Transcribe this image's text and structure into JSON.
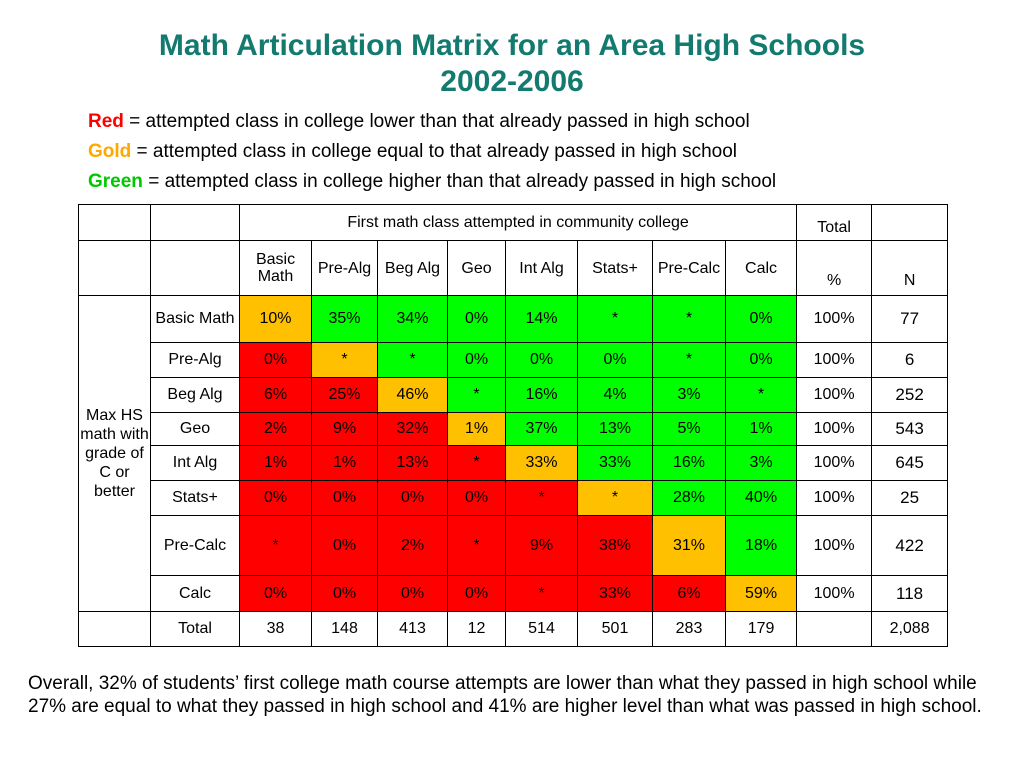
{
  "title_line1": "Math Articulation Matrix for an Area High Schools",
  "title_line2": "2002-2006",
  "legend": [
    {
      "keyword": "Red",
      "text": " = attempted class in college lower than that already passed in high school",
      "color": "#ff0000"
    },
    {
      "keyword": "Gold",
      "text": " = attempted class in college equal to that already passed in high school",
      "color": "#ffa800"
    },
    {
      "keyword": "Green",
      "text": " = attempted class in college higher than that already passed in high school",
      "color": "#00c800"
    }
  ],
  "colors": {
    "red": "#ff0000",
    "gold": "#ffc000",
    "green": "#00ff00",
    "title": "#127a6e"
  },
  "table": {
    "group_header": "First math class attempted in community college",
    "total_header": "Total",
    "pct_header": "%",
    "n_header": "N",
    "columns": [
      "Basic Math",
      "Pre-Alg",
      "Beg Alg",
      "Geo",
      "Int Alg",
      "Stats+",
      "Pre-Calc",
      "Calc"
    ],
    "side_label": "Max HS math with grade of C or better",
    "rows": [
      {
        "label": "Basic Math",
        "cells": [
          "10%",
          "35%",
          "34%",
          "0%",
          "14%",
          "*",
          "*",
          "0%"
        ],
        "colors": [
          "gold",
          "green",
          "green",
          "green",
          "green",
          "green",
          "green",
          "green"
        ],
        "pct": "100%",
        "n": "77"
      },
      {
        "label": "Pre-Alg",
        "cells": [
          "0%",
          "*",
          "*",
          "0%",
          "0%",
          "0%",
          "*",
          "0%"
        ],
        "colors": [
          "red",
          "gold",
          "green",
          "green",
          "green",
          "green",
          "green",
          "green"
        ],
        "pct": "100%",
        "n": "6"
      },
      {
        "label": "Beg Alg",
        "cells": [
          "6%",
          "25%",
          "46%",
          "*",
          "16%",
          "4%",
          "3%",
          "*"
        ],
        "colors": [
          "red",
          "red",
          "gold",
          "green",
          "green",
          "green",
          "green",
          "green"
        ],
        "pct": "100%",
        "n": "252"
      },
      {
        "label": "Geo",
        "cells": [
          "2%",
          "9%",
          "32%",
          "1%",
          "37%",
          "13%",
          "5%",
          "1%"
        ],
        "colors": [
          "red",
          "red",
          "red",
          "gold",
          "green",
          "green",
          "green",
          "green"
        ],
        "pct": "100%",
        "n": "543"
      },
      {
        "label": "Int Alg",
        "cells": [
          "1%",
          "1%",
          "13%",
          "*",
          "33%",
          "33%",
          "16%",
          "3%"
        ],
        "colors": [
          "red",
          "red",
          "red",
          "red",
          "gold",
          "green",
          "green",
          "green"
        ],
        "pct": "100%",
        "n": "645"
      },
      {
        "label": "Stats+",
        "cells": [
          "0%",
          "0%",
          "0%",
          "0%",
          "*",
          "*",
          "28%",
          "40%"
        ],
        "colors": [
          "red",
          "red",
          "red",
          "red",
          "red",
          "gold",
          "green",
          "green"
        ],
        "pct": "100%",
        "n": "25"
      },
      {
        "label": "Pre-Calc",
        "cells": [
          "*",
          "0%",
          "2%",
          "*",
          "9%",
          "38%",
          "31%",
          "18%"
        ],
        "colors": [
          "red",
          "red",
          "red",
          "red",
          "red",
          "red",
          "gold",
          "green"
        ],
        "pct": "100%",
        "n": "422"
      },
      {
        "label": "Calc",
        "cells": [
          "0%",
          "0%",
          "0%",
          "0%",
          "*",
          "33%",
          "6%",
          "59%"
        ],
        "colors": [
          "red",
          "red",
          "red",
          "red",
          "red",
          "red",
          "red",
          "gold"
        ],
        "pct": "100%",
        "n": "118"
      }
    ],
    "total_row": {
      "label": "Total",
      "values": [
        "38",
        "148",
        "413",
        "12",
        "514",
        "501",
        "283",
        "179"
      ],
      "pct": "",
      "n": "2,088"
    }
  },
  "footer": "Overall, 32% of students’ first college math course attempts are lower than what they passed in high school while 27% are equal to what they passed in high school and 41% are higher level than what was passed in high school."
}
